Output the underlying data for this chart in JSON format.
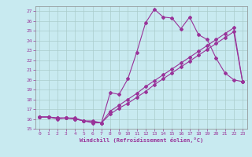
{
  "xlabel": "Windchill (Refroidissement éolien,°C)",
  "background_color": "#c8eaf0",
  "grid_color": "#aacccc",
  "line_color": "#993399",
  "xlim": [
    -0.5,
    23.5
  ],
  "ylim": [
    15,
    27.5
  ],
  "yticks": [
    15,
    16,
    17,
    18,
    19,
    20,
    21,
    22,
    23,
    24,
    25,
    26,
    27
  ],
  "xticks": [
    0,
    1,
    2,
    3,
    4,
    5,
    6,
    7,
    8,
    9,
    10,
    11,
    12,
    13,
    14,
    15,
    16,
    17,
    18,
    19,
    20,
    21,
    22,
    23
  ],
  "line1_x": [
    0,
    1,
    2,
    3,
    4,
    5,
    6,
    7,
    8,
    9,
    10,
    11,
    12,
    13,
    14,
    15,
    16,
    17,
    18,
    19,
    20,
    21,
    22,
    23
  ],
  "line1_y": [
    16.2,
    16.2,
    16.1,
    16.1,
    16.1,
    15.8,
    15.6,
    15.6,
    18.7,
    18.5,
    20.1,
    22.8,
    25.8,
    27.2,
    26.4,
    26.3,
    25.2,
    26.4,
    24.6,
    24.1,
    22.2,
    20.7,
    20.0,
    19.8
  ],
  "line2_x": [
    0,
    1,
    2,
    3,
    4,
    5,
    6,
    7,
    8,
    9,
    10,
    11,
    12,
    13,
    14,
    15,
    16,
    17,
    18,
    19,
    20,
    21,
    22,
    23
  ],
  "line2_y": [
    16.2,
    16.2,
    16.0,
    16.1,
    16.0,
    15.8,
    15.7,
    15.6,
    16.5,
    17.1,
    17.6,
    18.2,
    18.8,
    19.5,
    20.1,
    20.7,
    21.3,
    21.9,
    22.5,
    23.1,
    23.7,
    24.3,
    24.9,
    19.8
  ],
  "line3_x": [
    0,
    1,
    2,
    3,
    4,
    5,
    6,
    7,
    8,
    9,
    10,
    11,
    12,
    13,
    14,
    15,
    16,
    17,
    18,
    19,
    20,
    21,
    22,
    23
  ],
  "line3_y": [
    16.2,
    16.2,
    16.1,
    16.1,
    16.0,
    15.8,
    15.8,
    15.6,
    16.8,
    17.4,
    18.0,
    18.6,
    19.3,
    19.9,
    20.5,
    21.1,
    21.7,
    22.3,
    22.9,
    23.5,
    24.1,
    24.7,
    25.3,
    19.8
  ]
}
